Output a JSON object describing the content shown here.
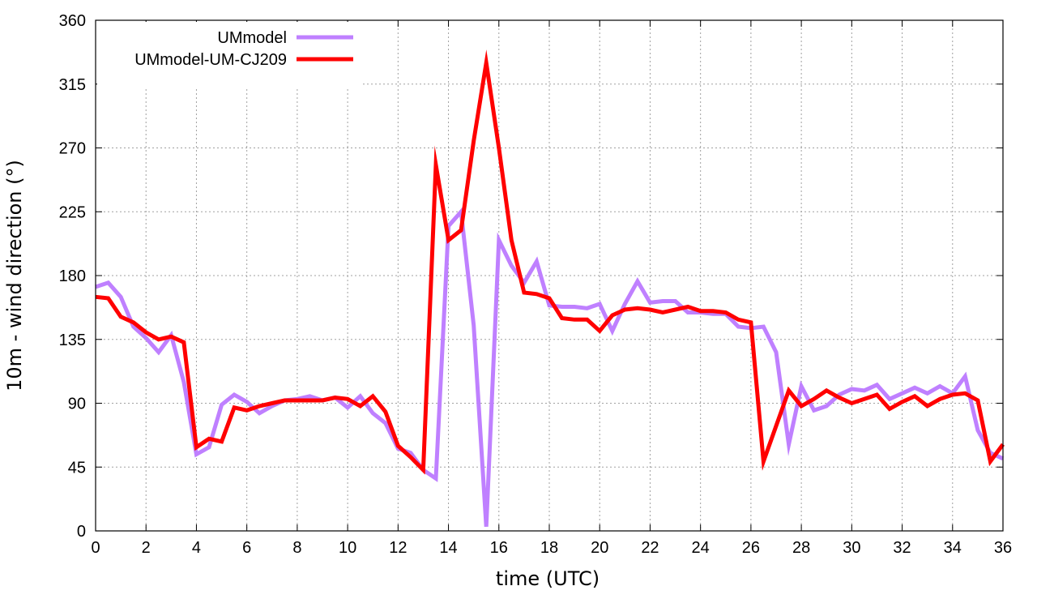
{
  "chart_data": {
    "type": "line",
    "title": "",
    "xlabel": "time (UTC)",
    "ylabel": "10m - wind direction (°)",
    "xlim": [
      0,
      36
    ],
    "ylim": [
      0,
      360
    ],
    "xticks": [
      "0",
      "2",
      "4",
      "6",
      "8",
      "10",
      "12",
      "14",
      "16",
      "18",
      "20",
      "22",
      "24",
      "26",
      "28",
      "30",
      "32",
      "34",
      "36"
    ],
    "yticks": [
      "0",
      "45",
      "90",
      "135",
      "180",
      "225",
      "270",
      "315",
      "360"
    ],
    "grid": true,
    "legend_position": "top-left",
    "series": [
      {
        "name": "UMmodel",
        "color": "#bf80ff",
        "x": [
          0,
          0.5,
          1,
          1.5,
          2,
          2.5,
          3,
          3.5,
          4,
          4.5,
          5,
          5.5,
          6,
          6.5,
          7,
          7.5,
          8,
          8.5,
          9,
          9.5,
          10,
          10.5,
          11,
          11.5,
          12,
          12.5,
          13,
          13.5,
          14,
          14.5,
          15,
          15.5,
          16,
          16.5,
          17,
          17.5,
          18,
          18.5,
          19,
          19.5,
          20,
          20.5,
          21,
          21.5,
          22,
          22.5,
          23,
          23.5,
          24,
          24.5,
          25,
          25.5,
          26,
          26.5,
          27,
          27.5,
          28,
          28.5,
          29,
          29.5,
          30,
          30.5,
          31,
          31.5,
          32,
          32.5,
          33,
          33.5,
          34,
          34.5,
          35,
          35.5,
          36
        ],
        "y": [
          172,
          175,
          165,
          144,
          136,
          126,
          138,
          105,
          54,
          59,
          89,
          96,
          91,
          83,
          88,
          92,
          93,
          95,
          92,
          94,
          87,
          95,
          83,
          76,
          58,
          55,
          43,
          37,
          215,
          225,
          145,
          3,
          205,
          187,
          175,
          190,
          159,
          158,
          158,
          157,
          160,
          141,
          160,
          176,
          161,
          162,
          162,
          154,
          154,
          153,
          153,
          144,
          143,
          144,
          126,
          61,
          102,
          85,
          88,
          96,
          100,
          99,
          103,
          93,
          97,
          101,
          97,
          102,
          97,
          109,
          71,
          55,
          51
        ]
      },
      {
        "name": "UMmodel-UM-CJ209",
        "color": "#ff0000",
        "x": [
          0,
          0.5,
          1,
          1.5,
          2,
          2.5,
          3,
          3.5,
          4,
          4.5,
          5,
          5.5,
          6,
          6.5,
          7,
          7.5,
          8,
          8.5,
          9,
          9.5,
          10,
          10.5,
          11,
          11.5,
          12,
          12.5,
          13,
          13.5,
          14,
          14.5,
          15,
          15.5,
          16,
          16.5,
          17,
          17.5,
          18,
          18.5,
          19,
          19.5,
          20,
          20.5,
          21,
          21.5,
          22,
          22.5,
          23,
          23.5,
          24,
          24.5,
          25,
          25.5,
          26,
          26.5,
          27,
          27.5,
          28,
          28.5,
          29,
          29.5,
          30,
          30.5,
          31,
          31.5,
          32,
          32.5,
          33,
          33.5,
          34,
          34.5,
          35,
          35.5,
          36
        ],
        "y": [
          165,
          164,
          151,
          147,
          140,
          135,
          137,
          133,
          59,
          65,
          63,
          87,
          85,
          88,
          90,
          92,
          92,
          92,
          92,
          94,
          93,
          88,
          95,
          84,
          60,
          52,
          43,
          258,
          205,
          212,
          275,
          330,
          270,
          205,
          168,
          167,
          164,
          150,
          149,
          149,
          141,
          152,
          156,
          157,
          156,
          154,
          156,
          158,
          155,
          155,
          154,
          149,
          147,
          49,
          74,
          99,
          88,
          93,
          99,
          94,
          90,
          93,
          96,
          86,
          91,
          95,
          88,
          93,
          96,
          97,
          92,
          49,
          61
        ]
      }
    ]
  }
}
